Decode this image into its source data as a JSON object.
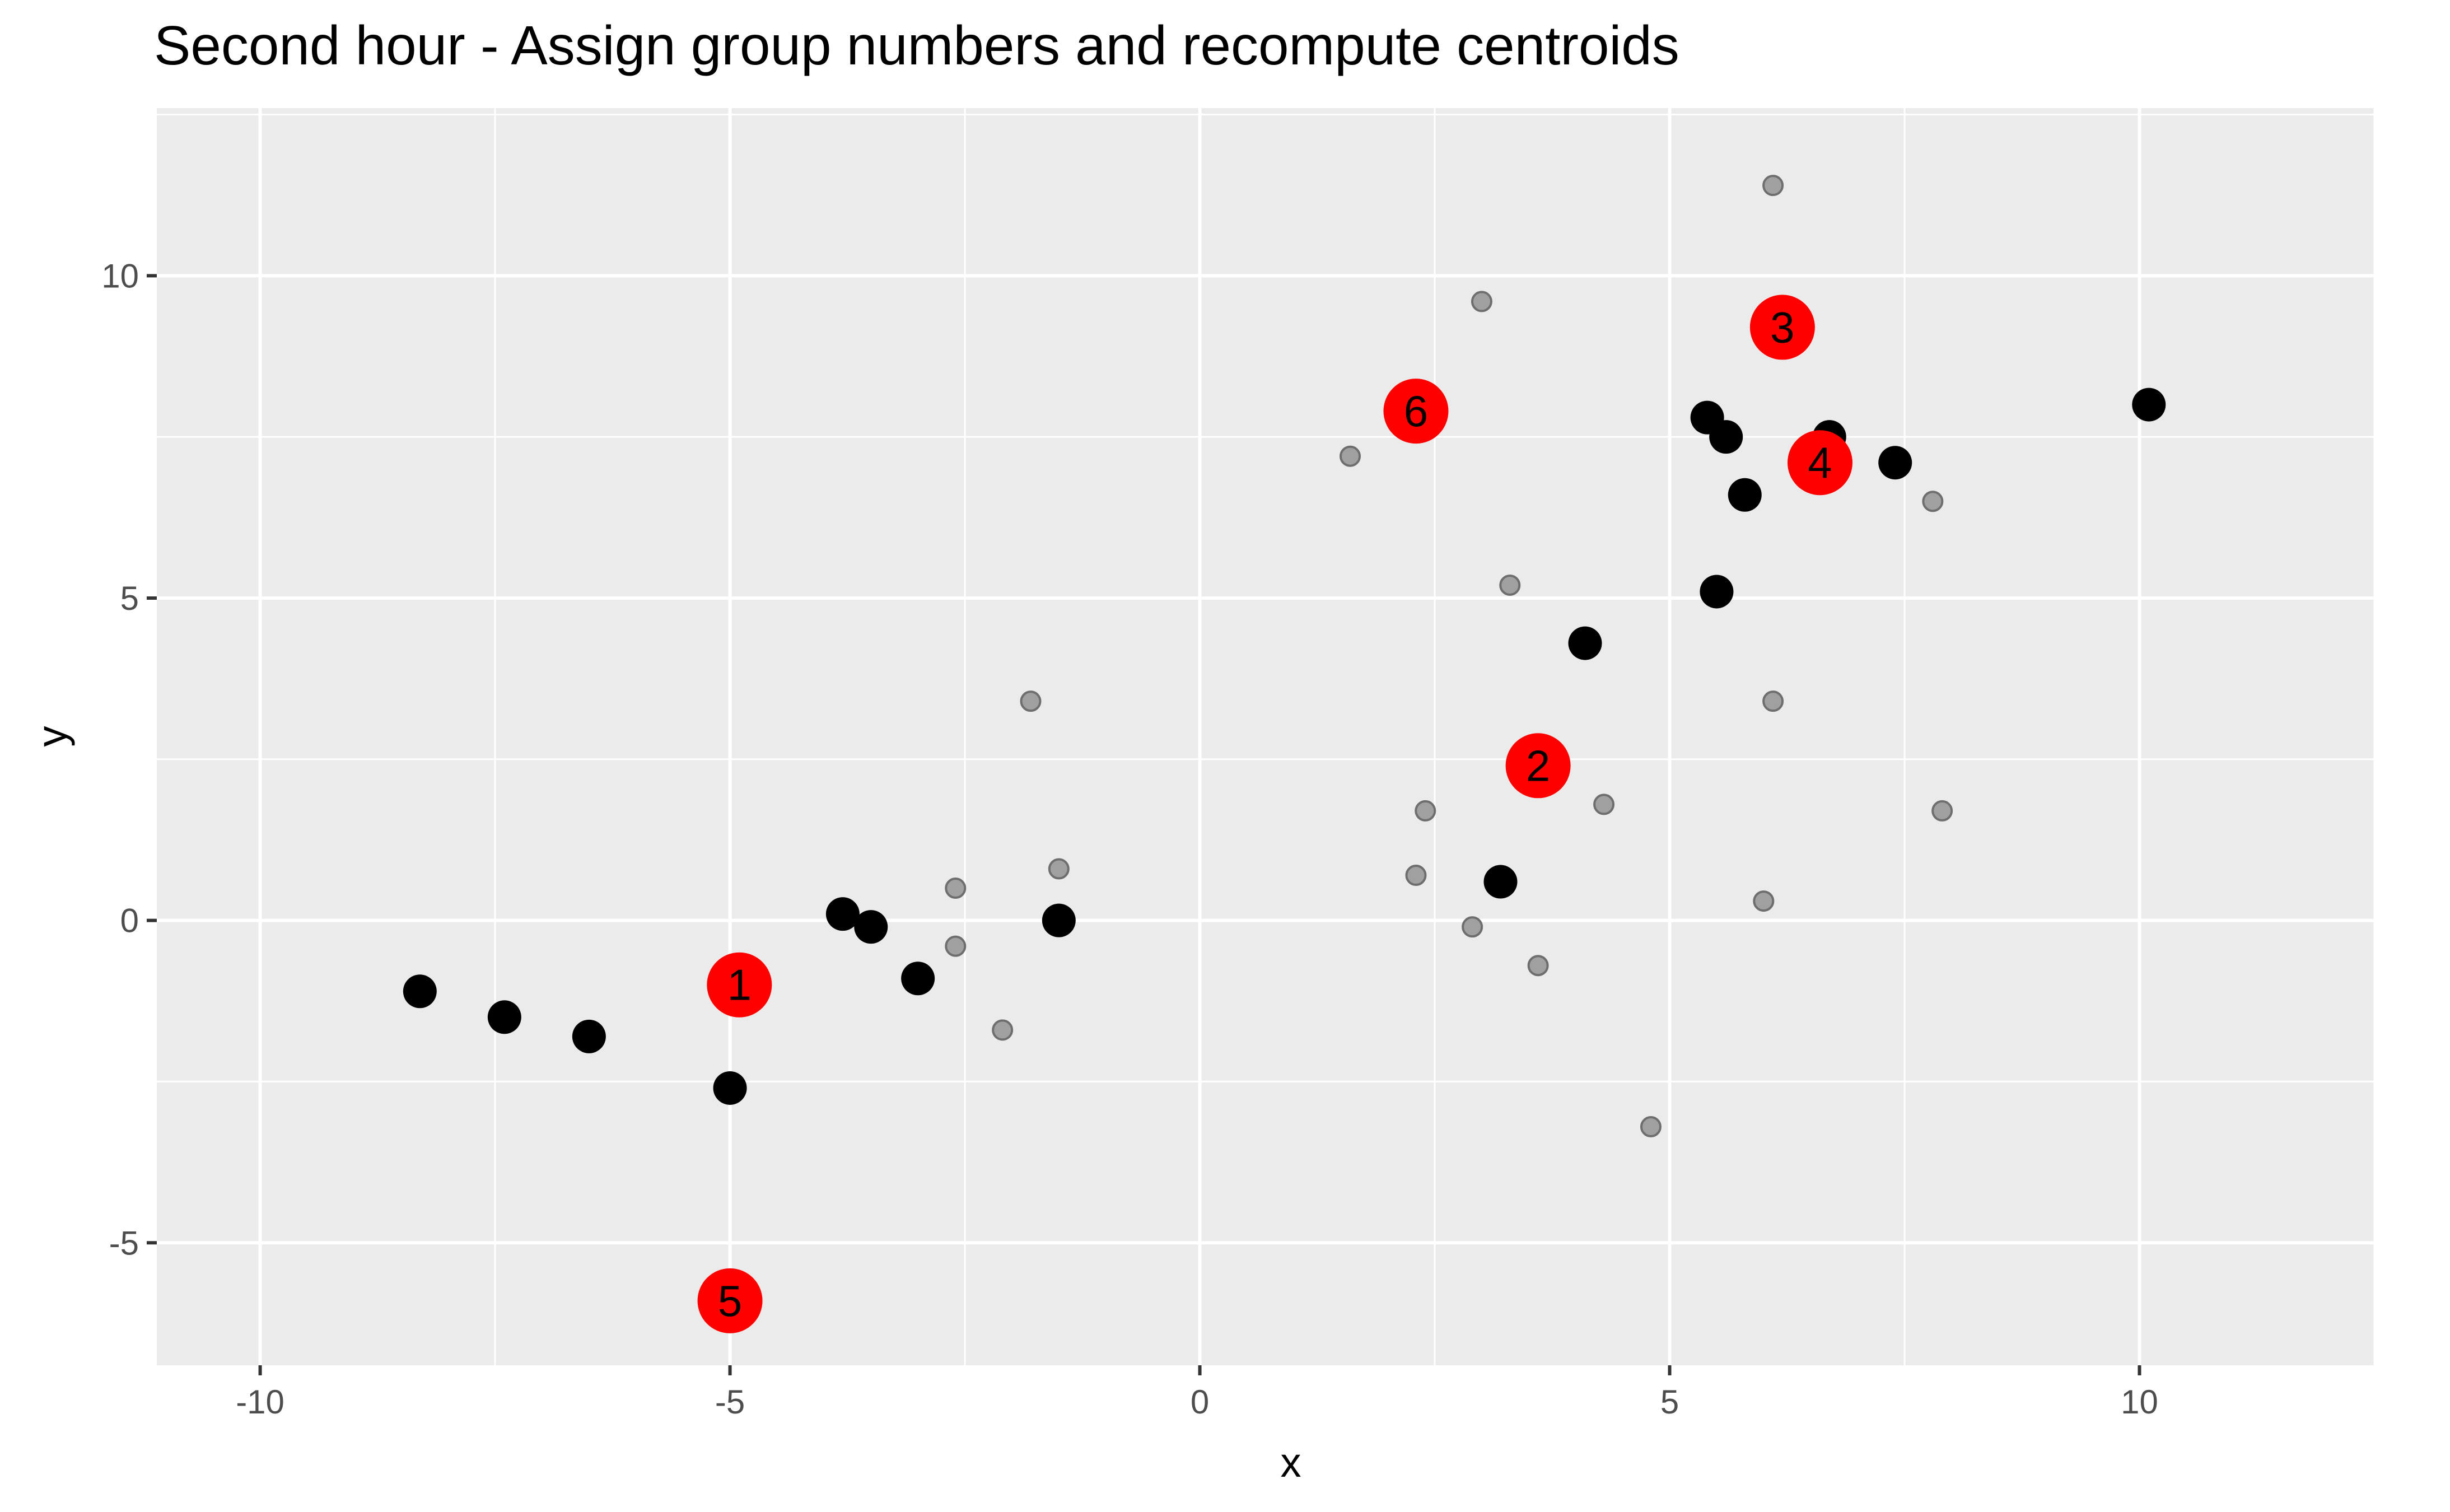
{
  "chart_data": {
    "type": "scatter",
    "title": "Second hour - Assign group numbers and recompute centroids",
    "xlabel": "x",
    "ylabel": "y",
    "xlim": [
      -11.1,
      12.5
    ],
    "ylim": [
      -6.9,
      12.6
    ],
    "x_ticks": [
      -10,
      -5,
      0,
      5,
      10
    ],
    "x_tick_labels": [
      "-10",
      "-5",
      "0",
      "5",
      "10"
    ],
    "y_ticks": [
      -5,
      0,
      5,
      10
    ],
    "y_tick_labels": [
      "-5",
      "0",
      "5",
      "10"
    ],
    "x_minor_ticks": [
      -7.5,
      -2.5,
      2.5,
      7.5,
      12.5
    ],
    "y_minor_ticks": [
      -2.5,
      2.5,
      7.5,
      12.5
    ],
    "grid": true,
    "colors": {
      "panel_background": "#ebebeb",
      "grid": "#ffffff",
      "assigned_point": "#000000",
      "unassigned_point": "#a0a0a0",
      "centroid": "#ff0000"
    },
    "series": [
      {
        "role": "unassigned",
        "color": "#a0a0a0",
        "points": [
          {
            "x": 6.1,
            "y": 11.4
          },
          {
            "x": 3.0,
            "y": 9.6
          },
          {
            "x": 1.6,
            "y": 7.2
          },
          {
            "x": 7.8,
            "y": 6.5
          },
          {
            "x": 3.3,
            "y": 5.2
          },
          {
            "x": -1.8,
            "y": 3.4
          },
          {
            "x": 6.1,
            "y": 3.4
          },
          {
            "x": 4.3,
            "y": 1.8
          },
          {
            "x": 2.4,
            "y": 1.7
          },
          {
            "x": 7.9,
            "y": 1.7
          },
          {
            "x": -1.5,
            "y": 0.8
          },
          {
            "x": 2.3,
            "y": 0.7
          },
          {
            "x": -2.6,
            "y": 0.5
          },
          {
            "x": 6.0,
            "y": 0.3
          },
          {
            "x": 2.9,
            "y": -0.1
          },
          {
            "x": -2.6,
            "y": -0.4
          },
          {
            "x": 3.6,
            "y": -0.7
          },
          {
            "x": -2.1,
            "y": -1.7
          },
          {
            "x": 4.8,
            "y": -3.2
          }
        ]
      },
      {
        "role": "assigned",
        "color": "#000000",
        "points": [
          {
            "x": 10.1,
            "y": 8.0
          },
          {
            "x": 5.4,
            "y": 7.8
          },
          {
            "x": 5.6,
            "y": 7.5
          },
          {
            "x": 6.7,
            "y": 7.5
          },
          {
            "x": 7.4,
            "y": 7.1
          },
          {
            "x": 5.8,
            "y": 6.6
          },
          {
            "x": 5.5,
            "y": 5.1
          },
          {
            "x": 4.1,
            "y": 4.3
          },
          {
            "x": 3.2,
            "y": 0.6
          },
          {
            "x": -3.8,
            "y": 0.1
          },
          {
            "x": -3.5,
            "y": -0.1
          },
          {
            "x": -1.5,
            "y": 0.0
          },
          {
            "x": -3.0,
            "y": -0.9
          },
          {
            "x": -8.3,
            "y": -1.1
          },
          {
            "x": -7.4,
            "y": -1.5
          },
          {
            "x": -6.5,
            "y": -1.8
          },
          {
            "x": -5.0,
            "y": -2.6
          }
        ]
      }
    ],
    "centroids": [
      {
        "label": "1",
        "x": -4.9,
        "y": -1.0
      },
      {
        "label": "2",
        "x": 3.6,
        "y": 2.4
      },
      {
        "label": "3",
        "x": 6.2,
        "y": 9.2
      },
      {
        "label": "4",
        "x": 6.6,
        "y": 7.1
      },
      {
        "label": "5",
        "x": -5.0,
        "y": -5.9
      },
      {
        "label": "6",
        "x": 2.3,
        "y": 7.9
      }
    ]
  }
}
